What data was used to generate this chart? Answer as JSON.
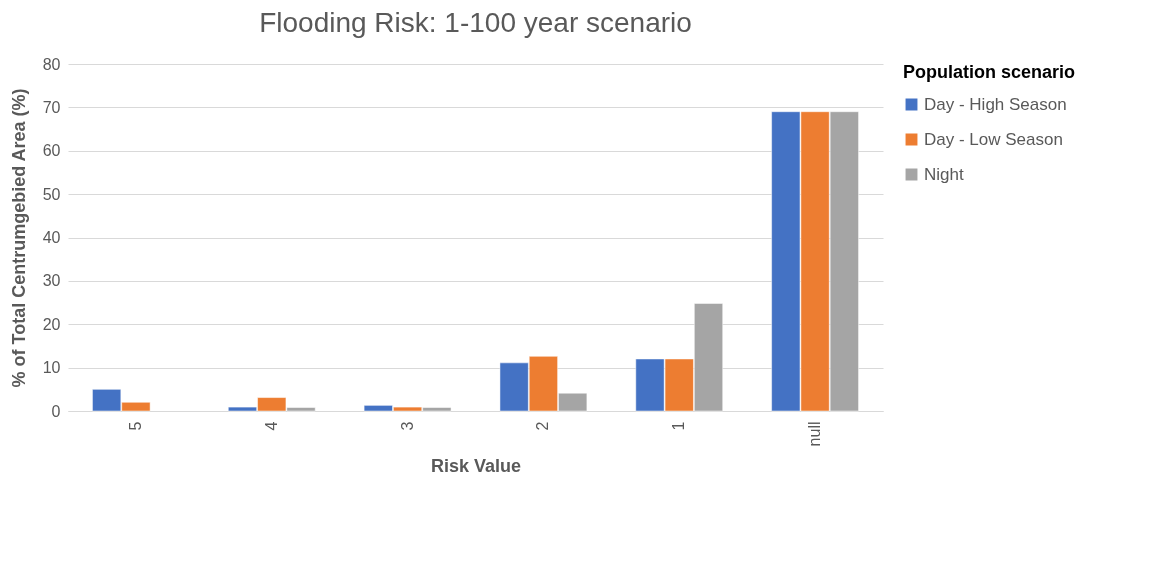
{
  "chart_data": {
    "type": "bar",
    "title": "Flooding Risk: 1-100 year scenario",
    "xlabel": "Risk Value",
    "ylabel": "% of Total Centrumgebied Area (%)",
    "legend_title": "Population scenario",
    "categories": [
      "5",
      "4",
      "3",
      "2",
      "1",
      "null"
    ],
    "series": [
      {
        "name": "Day - High Season",
        "color": "#4472c4",
        "values": [
          5.0,
          0.9,
          1.3,
          11.1,
          12.0,
          69.0
        ]
      },
      {
        "name": "Day - Low Season",
        "color": "#ed7d31",
        "values": [
          2.0,
          3.1,
          0.9,
          12.6,
          12.0,
          69.0
        ]
      },
      {
        "name": "Night",
        "color": "#a5a5a5",
        "values": [
          null,
          0.8,
          0.8,
          4.1,
          24.8,
          69.0
        ]
      }
    ],
    "ylim": [
      0,
      80
    ],
    "yticks": [
      0,
      10,
      20,
      30,
      40,
      50,
      60,
      70,
      80
    ],
    "grid": "y",
    "legend": "right"
  }
}
